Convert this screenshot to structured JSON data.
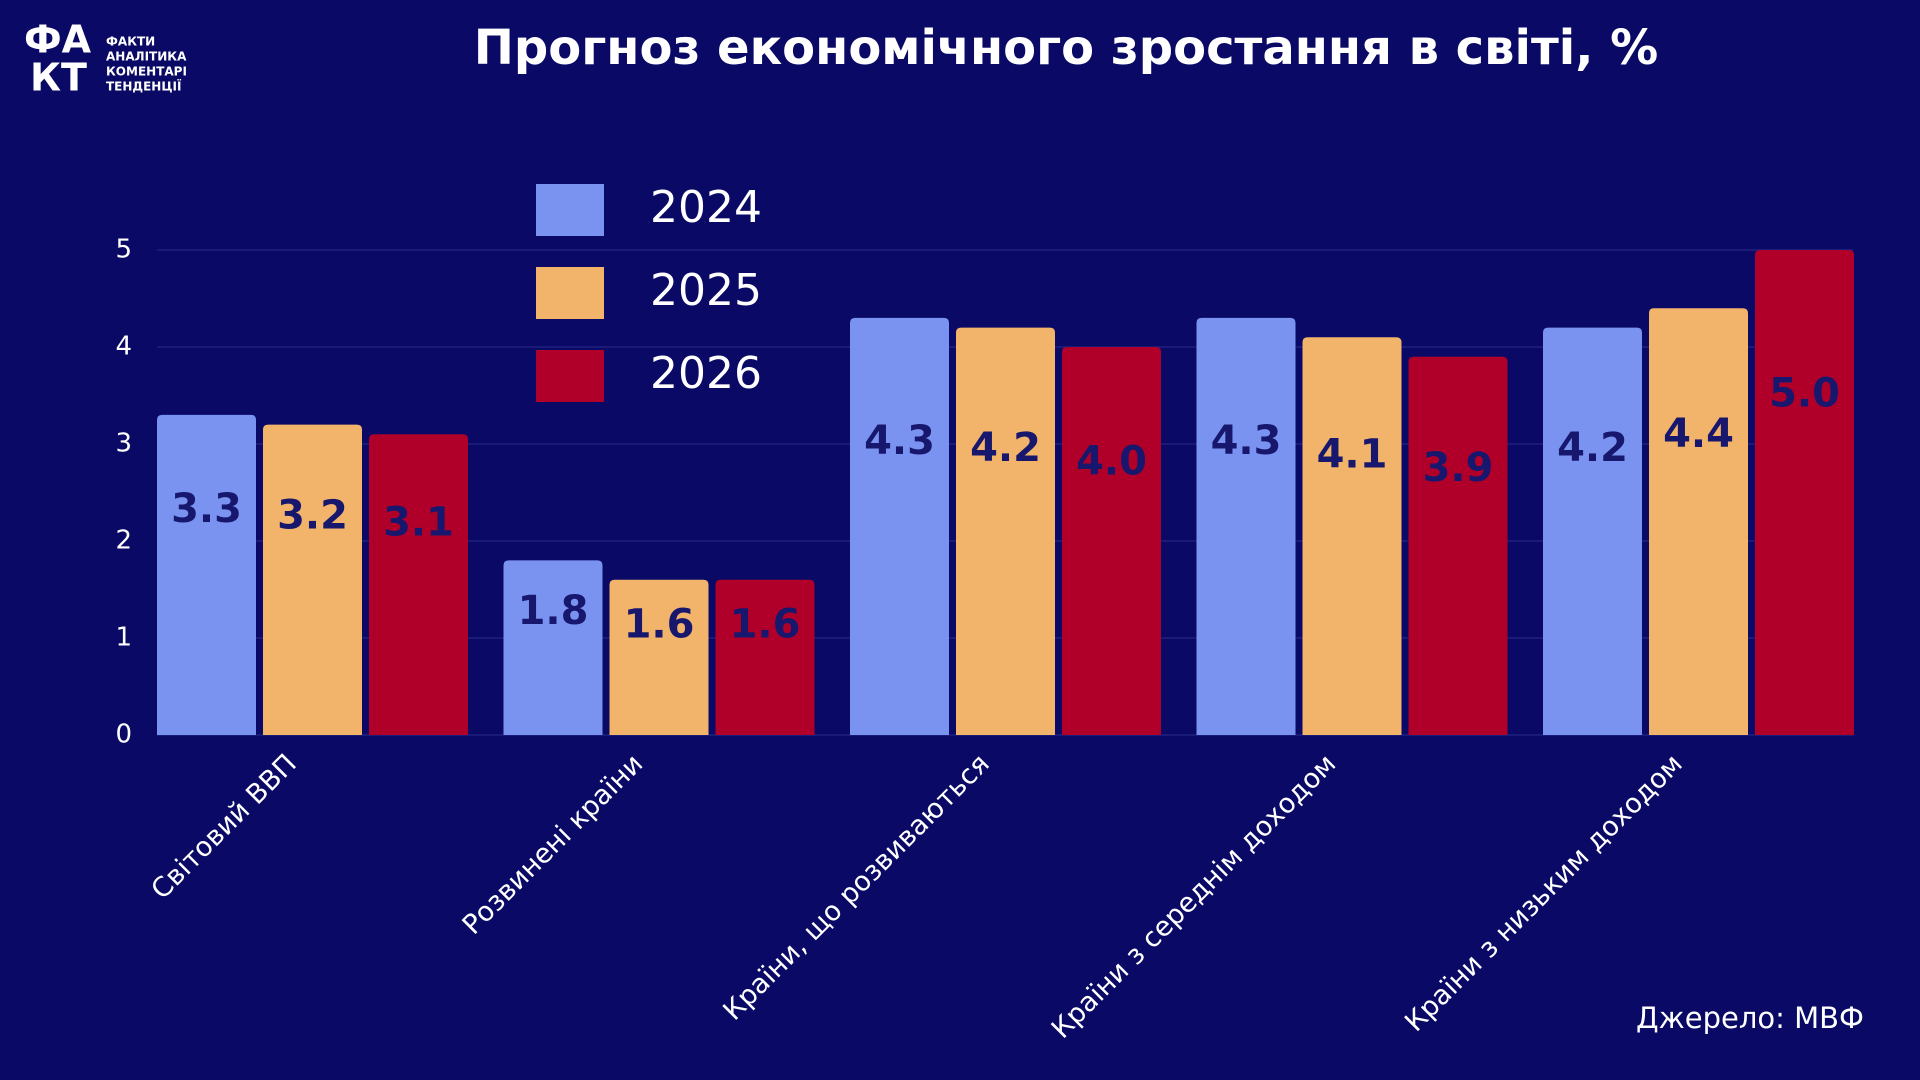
{
  "logo": {
    "symbol_top": "ФА",
    "symbol_bottom": "КТ",
    "lines": [
      "ФАКТИ",
      "АНАЛІТИКА",
      "КОМЕНТАРІ",
      "ТЕНДЕНЦІЇ"
    ]
  },
  "chart_data": {
    "type": "bar",
    "title": "Прогноз економічного зростання в світі, %",
    "categories": [
      "Світовий ВВП",
      "Розвинені країни",
      "Країни, що розвиваються",
      "Країни з середнім доходом",
      "Країни з низьким доходом"
    ],
    "series": [
      {
        "name": "2024",
        "color": "#7b93f0",
        "values": [
          3.3,
          1.8,
          4.3,
          4.3,
          4.2
        ],
        "value_labels": [
          "3.3",
          "1.8",
          "4.3",
          "4.3",
          "4.2"
        ]
      },
      {
        "name": "2025",
        "color": "#f2b36b",
        "values": [
          3.2,
          1.6,
          4.2,
          4.1,
          4.4
        ],
        "value_labels": [
          "3.2",
          "1.6",
          "4.2",
          "4.1",
          "4.4"
        ]
      },
      {
        "name": "2026",
        "color": "#b0002a",
        "values": [
          3.1,
          1.6,
          4.0,
          3.9,
          5.0
        ],
        "value_labels": [
          "3.1",
          "1.6",
          "4.0",
          "3.9",
          "5.0"
        ]
      }
    ],
    "ylim": [
      0,
      5
    ],
    "yticks": [
      0,
      1,
      2,
      3,
      4,
      5
    ],
    "grid": true,
    "source": "Джерело: МВФ"
  }
}
